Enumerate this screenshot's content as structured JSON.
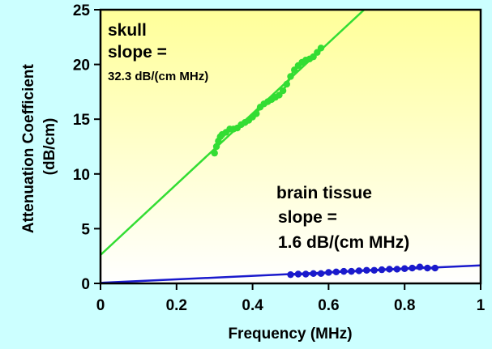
{
  "chart_data": {
    "type": "scatter",
    "title": "",
    "xlabel": "Frequency (MHz)",
    "ylabel_lines": [
      "Attenuation Coefficient",
      "(dB/cm)"
    ],
    "xlim": [
      0,
      1
    ],
    "ylim": [
      0,
      25
    ],
    "x_ticks": [
      "0",
      "0.2",
      "0.4",
      "0.6",
      "0.8",
      "1"
    ],
    "y_ticks": [
      "0",
      "5",
      "10",
      "15",
      "20",
      "25"
    ],
    "grid": false,
    "colors": {
      "page_background": "#ccffff",
      "plot_gradient_top": "#ffff99",
      "plot_gradient_bottom": "#ffffff",
      "skull": "#33dd33",
      "brain": "#1a1acc"
    },
    "series": [
      {
        "key": "skull",
        "annotation": [
          "skull",
          "slope =",
          "32.3 dB/(cm MHz)"
        ],
        "fit_line": {
          "intercept": 2.6,
          "slope": 32.3
        },
        "points": [
          [
            0.3,
            11.9
          ],
          [
            0.305,
            12.5
          ],
          [
            0.31,
            13.0
          ],
          [
            0.315,
            13.4
          ],
          [
            0.32,
            13.6
          ],
          [
            0.33,
            13.8
          ],
          [
            0.34,
            14.1
          ],
          [
            0.35,
            14.1
          ],
          [
            0.36,
            14.2
          ],
          [
            0.37,
            14.5
          ],
          [
            0.38,
            14.7
          ],
          [
            0.39,
            14.9
          ],
          [
            0.4,
            15.2
          ],
          [
            0.41,
            15.5
          ],
          [
            0.42,
            16.1
          ],
          [
            0.43,
            16.4
          ],
          [
            0.44,
            16.6
          ],
          [
            0.45,
            16.8
          ],
          [
            0.46,
            17.0
          ],
          [
            0.47,
            17.2
          ],
          [
            0.48,
            17.6
          ],
          [
            0.49,
            18.2
          ],
          [
            0.5,
            18.9
          ],
          [
            0.51,
            19.5
          ],
          [
            0.52,
            19.9
          ],
          [
            0.53,
            20.2
          ],
          [
            0.54,
            20.4
          ],
          [
            0.55,
            20.5
          ],
          [
            0.56,
            20.7
          ],
          [
            0.57,
            21.1
          ],
          [
            0.58,
            21.5
          ]
        ]
      },
      {
        "key": "brain",
        "annotation": [
          "brain tissue",
          "slope =",
          "1.6 dB/(cm MHz)"
        ],
        "fit_line": {
          "intercept": 0.05,
          "slope": 1.6
        },
        "points": [
          [
            0.5,
            0.8
          ],
          [
            0.52,
            0.85
          ],
          [
            0.54,
            0.85
          ],
          [
            0.56,
            0.9
          ],
          [
            0.58,
            0.9
          ],
          [
            0.6,
            1.0
          ],
          [
            0.62,
            1.05
          ],
          [
            0.64,
            1.1
          ],
          [
            0.66,
            1.1
          ],
          [
            0.68,
            1.15
          ],
          [
            0.7,
            1.2
          ],
          [
            0.72,
            1.2
          ],
          [
            0.74,
            1.25
          ],
          [
            0.76,
            1.3
          ],
          [
            0.78,
            1.3
          ],
          [
            0.8,
            1.35
          ],
          [
            0.82,
            1.4
          ],
          [
            0.84,
            1.5
          ],
          [
            0.86,
            1.4
          ],
          [
            0.88,
            1.4
          ]
        ]
      }
    ]
  }
}
